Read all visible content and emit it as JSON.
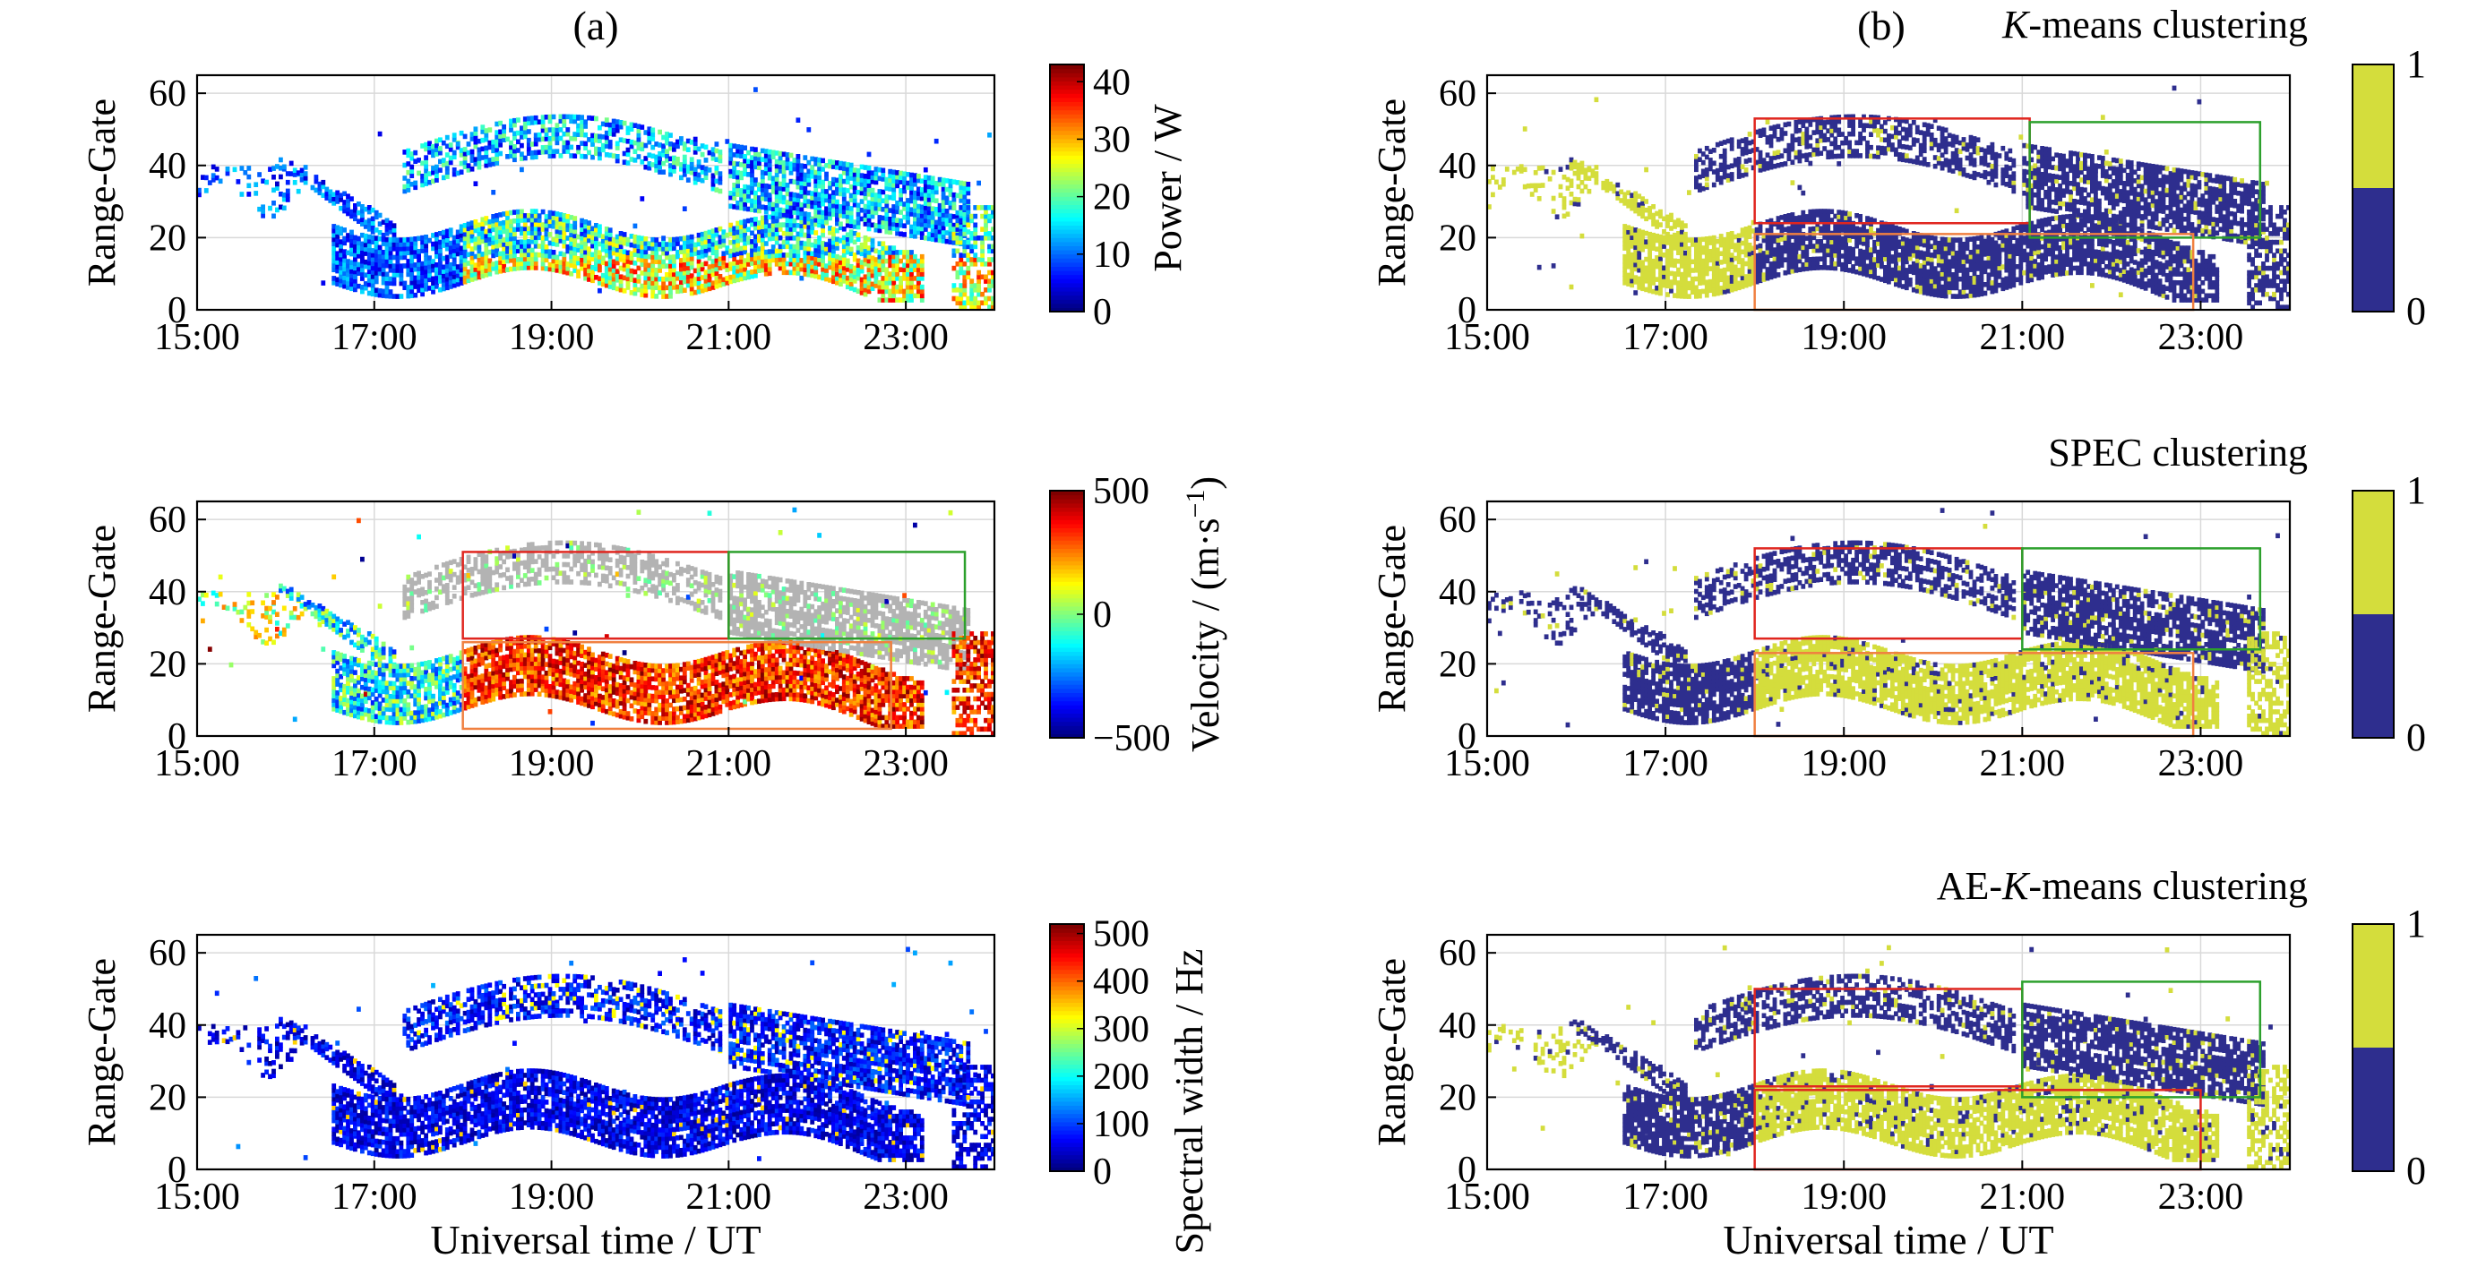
{
  "figure": {
    "panel_labels": [
      "(a)",
      "(b)"
    ],
    "xlabel": "Universal time / UT",
    "ylabel": "Range-Gate"
  },
  "chart_data": [
    {
      "type": "heatmap",
      "id": "a1",
      "panel": "(a)",
      "title": "",
      "xlabel": "",
      "ylabel": "Range-Gate",
      "xlim": [
        "15:00",
        "24:00"
      ],
      "ylim": [
        0,
        65
      ],
      "xticks": [
        "15:00",
        "17:00",
        "19:00",
        "21:00",
        "23:00"
      ],
      "yticks": [
        0,
        20,
        40,
        60
      ],
      "grid": true,
      "colormap": "jet",
      "colorbar": {
        "label": "Power / W",
        "min": 0,
        "max": 43,
        "ticks": [
          0,
          10,
          20,
          30,
          40
        ]
      },
      "value_range": [
        0,
        43
      ],
      "boxes": []
    },
    {
      "type": "heatmap",
      "id": "a2",
      "panel": "(a)",
      "title": "",
      "xlabel": "",
      "ylabel": "Range-Gate",
      "xlim": [
        "15:00",
        "24:00"
      ],
      "ylim": [
        0,
        65
      ],
      "xticks": [
        "15:00",
        "17:00",
        "19:00",
        "21:00",
        "23:00"
      ],
      "yticks": [
        0,
        20,
        40,
        60
      ],
      "grid": true,
      "colormap": "jet",
      "colorbar": {
        "label": "Velocity / (m·s",
        "label_sup": "−1",
        "label_end": ")",
        "min": -500,
        "max": 500,
        "ticks": [
          "−500",
          "0",
          "500"
        ]
      },
      "value_range": [
        -500,
        500
      ],
      "grey_region": true,
      "boxes": [
        {
          "color": "#e0261f",
          "x0": "18:00",
          "x1": "21:00",
          "y0": 27,
          "y1": 51
        },
        {
          "color": "#2ca02c",
          "x0": "21:00",
          "x1": "23:40",
          "y0": 27,
          "y1": 51
        },
        {
          "color": "#f08040",
          "x0": "18:00",
          "x1": "22:50",
          "y0": 2,
          "y1": 26
        }
      ]
    },
    {
      "type": "heatmap",
      "id": "a3",
      "panel": "(a)",
      "title": "",
      "xlabel": "Universal time / UT",
      "ylabel": "Range-Gate",
      "xlim": [
        "15:00",
        "24:00"
      ],
      "ylim": [
        0,
        65
      ],
      "xticks": [
        "15:00",
        "17:00",
        "19:00",
        "21:00",
        "23:00"
      ],
      "yticks": [
        0,
        20,
        40,
        60
      ],
      "grid": true,
      "colormap": "jet",
      "colorbar": {
        "label": "Spectral width / Hz",
        "min": 0,
        "max": 520,
        "ticks": [
          0,
          100,
          200,
          300,
          400,
          500
        ]
      },
      "value_range": [
        0,
        520
      ],
      "boxes": []
    },
    {
      "type": "heatmap",
      "id": "b1",
      "panel": "(b)",
      "title": "K-means clustering",
      "title_italic": "K",
      "title_rest": "-means clustering",
      "xlabel": "",
      "ylabel": "Range-Gate",
      "xlim": [
        "15:00",
        "24:00"
      ],
      "ylim": [
        0,
        65
      ],
      "xticks": [
        "15:00",
        "17:00",
        "19:00",
        "21:00",
        "23:00"
      ],
      "yticks": [
        0,
        20,
        40,
        60
      ],
      "grid": true,
      "colormap": "binary",
      "cluster_colors": {
        "0": "#2e2e8e",
        "1": "#d4dd3c"
      },
      "colorbar": {
        "label": "",
        "min": 0,
        "max": 1,
        "ticks": [
          0,
          1
        ]
      },
      "labels": {
        "before_16:00": 1,
        "early_band": 1,
        "upper_band": 0,
        "lower_band": 0
      },
      "boxes": [
        {
          "color": "#e0261f",
          "x0": "18:00",
          "x1": "21:05",
          "y0": 24,
          "y1": 53
        },
        {
          "color": "#2ca02c",
          "x0": "21:05",
          "x1": "23:40",
          "y0": 20,
          "y1": 52
        },
        {
          "color": "#f08040",
          "x0": "18:00",
          "x1": "22:55",
          "y0": 0,
          "y1": 21
        }
      ]
    },
    {
      "type": "heatmap",
      "id": "b2",
      "panel": "(b)",
      "title": "SPEC clustering",
      "xlabel": "",
      "ylabel": "Range-Gate",
      "xlim": [
        "15:00",
        "24:00"
      ],
      "ylim": [
        0,
        65
      ],
      "xticks": [
        "15:00",
        "17:00",
        "19:00",
        "21:00",
        "23:00"
      ],
      "yticks": [
        0,
        20,
        40,
        60
      ],
      "grid": true,
      "colormap": "binary",
      "cluster_colors": {
        "0": "#2e2e8e",
        "1": "#d4dd3c"
      },
      "colorbar": {
        "label": "",
        "min": 0,
        "max": 1,
        "ticks": [
          0,
          1
        ]
      },
      "labels": {
        "before_16:00": 0,
        "early_band": 0,
        "upper_band": 0,
        "lower_band": 1
      },
      "boxes": [
        {
          "color": "#e0261f",
          "x0": "18:00",
          "x1": "21:00",
          "y0": 27,
          "y1": 52
        },
        {
          "color": "#2ca02c",
          "x0": "21:00",
          "x1": "23:40",
          "y0": 24,
          "y1": 52
        },
        {
          "color": "#f08040",
          "x0": "18:00",
          "x1": "22:55",
          "y0": 0,
          "y1": 23
        }
      ]
    },
    {
      "type": "heatmap",
      "id": "b3",
      "panel": "(b)",
      "title": "AE-K-means clustering",
      "title_pre": "AE-",
      "title_italic": "K",
      "title_rest": "-means clustering",
      "xlabel": "Universal time / UT",
      "ylabel": "Range-Gate",
      "xlim": [
        "15:00",
        "24:00"
      ],
      "ylim": [
        0,
        65
      ],
      "xticks": [
        "15:00",
        "17:00",
        "19:00",
        "21:00",
        "23:00"
      ],
      "yticks": [
        0,
        20,
        40,
        60
      ],
      "grid": true,
      "colormap": "binary",
      "cluster_colors": {
        "0": "#2e2e8e",
        "1": "#d4dd3c"
      },
      "colorbar": {
        "label": "",
        "min": 0,
        "max": 1,
        "ticks": [
          0,
          1
        ]
      },
      "labels": {
        "before_16:00": 1,
        "early_band": 0,
        "upper_band": 0,
        "lower_band": 1
      },
      "boxes": [
        {
          "color": "#e0261f",
          "x0": "18:00",
          "x1": "21:00",
          "y0": 23,
          "y1": 50
        },
        {
          "color": "#2ca02c",
          "x0": "21:00",
          "x1": "23:40",
          "y0": 20,
          "y1": 52
        },
        {
          "color": "#e0261f",
          "x0": "18:00",
          "x1": "23:00",
          "y0": 0,
          "y1": 22
        }
      ]
    }
  ]
}
